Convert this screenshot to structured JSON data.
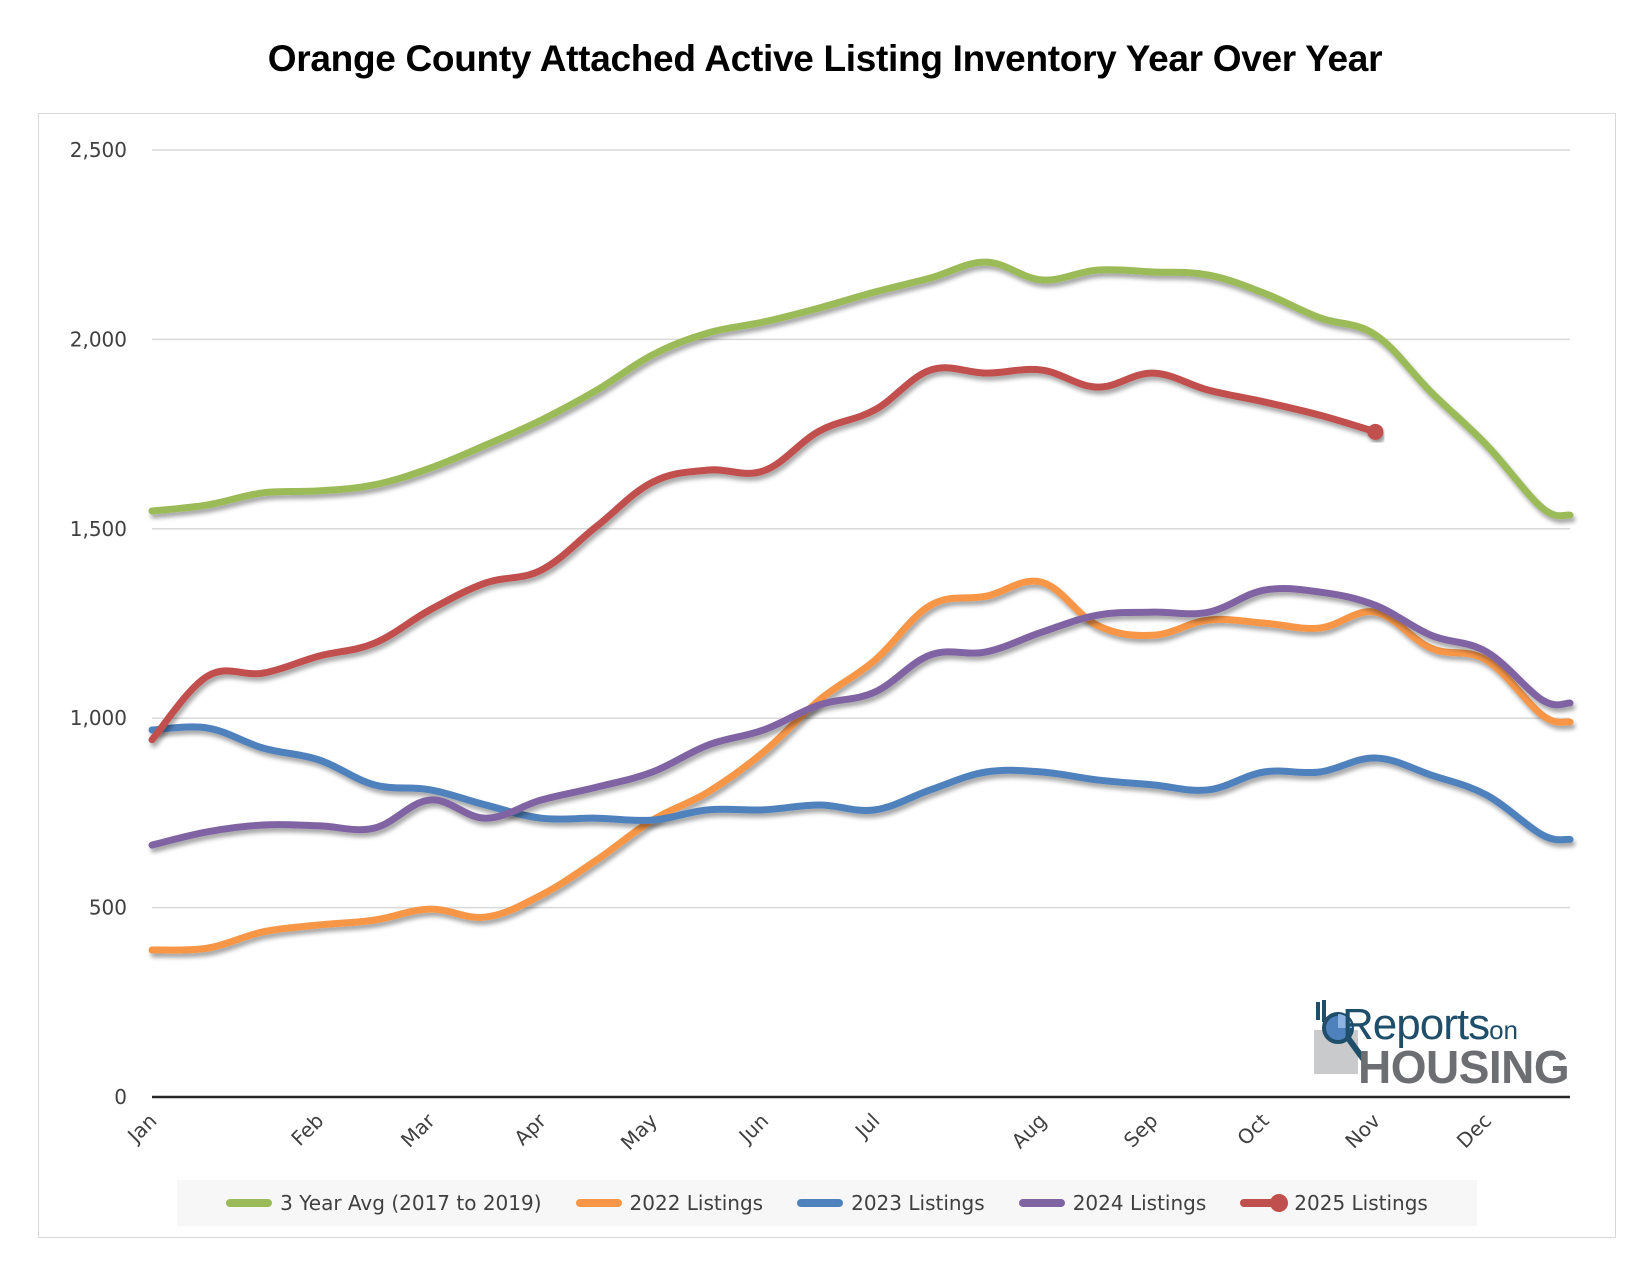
{
  "chart_data": {
    "type": "line",
    "title": "Orange County Attached Active Listing Inventory Year Over Year",
    "xlabel": "",
    "ylabel": "",
    "ylim": [
      0,
      2500
    ],
    "xlim": [
      0,
      25.5
    ],
    "yticks": [
      {
        "value": 0,
        "label": "0"
      },
      {
        "value": 500,
        "label": "500"
      },
      {
        "value": 1000,
        "label": "1,000"
      },
      {
        "value": 1500,
        "label": "1,500"
      },
      {
        "value": 2000,
        "label": "2,000"
      },
      {
        "value": 2500,
        "label": "2,500"
      }
    ],
    "xticks": [
      {
        "x": 0,
        "label": "Jan"
      },
      {
        "x": 3,
        "label": "Feb"
      },
      {
        "x": 5,
        "label": "Mar"
      },
      {
        "x": 7,
        "label": "Apr"
      },
      {
        "x": 9,
        "label": "May"
      },
      {
        "x": 11,
        "label": "Jun"
      },
      {
        "x": 13,
        "label": "Jul"
      },
      {
        "x": 16,
        "label": "Aug"
      },
      {
        "x": 18,
        "label": "Sep"
      },
      {
        "x": 20,
        "label": "Oct"
      },
      {
        "x": 22,
        "label": "Nov"
      },
      {
        "x": 24,
        "label": "Dec"
      }
    ],
    "grid": true,
    "legend": "bottom",
    "x": [
      0,
      1,
      2,
      3,
      4,
      5,
      6,
      7,
      8,
      9,
      10,
      11,
      12,
      13,
      14,
      15,
      16,
      17,
      18,
      19,
      20,
      21,
      22,
      23,
      24,
      25,
      25.5
    ],
    "series": [
      {
        "name": "3 Year Avg (2017 to 2019)",
        "color": "#9bbb59",
        "values": [
          1547,
          1563,
          1595,
          1600,
          1616,
          1660,
          1721,
          1787,
          1866,
          1959,
          2017,
          2046,
          2083,
          2125,
          2162,
          2204,
          2157,
          2183,
          2178,
          2170,
          2122,
          2057,
          2012,
          1861,
          1721,
          1555,
          1536
        ]
      },
      {
        "name": "2022 Listings",
        "color": "#f79646",
        "values": [
          388,
          393,
          436,
          454,
          467,
          496,
          475,
          533,
          626,
          731,
          805,
          911,
          1048,
          1153,
          1298,
          1322,
          1359,
          1245,
          1219,
          1259,
          1251,
          1238,
          1280,
          1185,
          1153,
          1008,
          990
        ]
      },
      {
        "name": "2023 Listings",
        "color": "#4f81bd",
        "values": [
          969,
          974,
          921,
          890,
          824,
          811,
          771,
          736,
          736,
          731,
          758,
          758,
          771,
          758,
          811,
          858,
          858,
          837,
          824,
          811,
          858,
          858,
          895,
          850,
          797,
          692,
          680
        ]
      },
      {
        "name": "2024 Listings",
        "color": "#8064a2",
        "values": [
          665,
          700,
          718,
          716,
          710,
          784,
          736,
          784,
          818,
          858,
          929,
          969,
          1035,
          1069,
          1167,
          1175,
          1227,
          1272,
          1280,
          1280,
          1338,
          1333,
          1298,
          1219,
          1175,
          1048,
          1040
        ]
      },
      {
        "name": "2025 Listings",
        "color": "#c0504d",
        "marker_last": true,
        "values": [
          943,
          1111,
          1119,
          1164,
          1198,
          1286,
          1357,
          1391,
          1507,
          1623,
          1655,
          1653,
          1758,
          1814,
          1919,
          1911,
          1919,
          1874,
          1911,
          1866,
          1835,
          1800,
          1756,
          null,
          null,
          null,
          null
        ]
      }
    ]
  },
  "logo": {
    "line1": "Reports",
    "line1_suffix": "on",
    "line2": "HOUSING"
  }
}
